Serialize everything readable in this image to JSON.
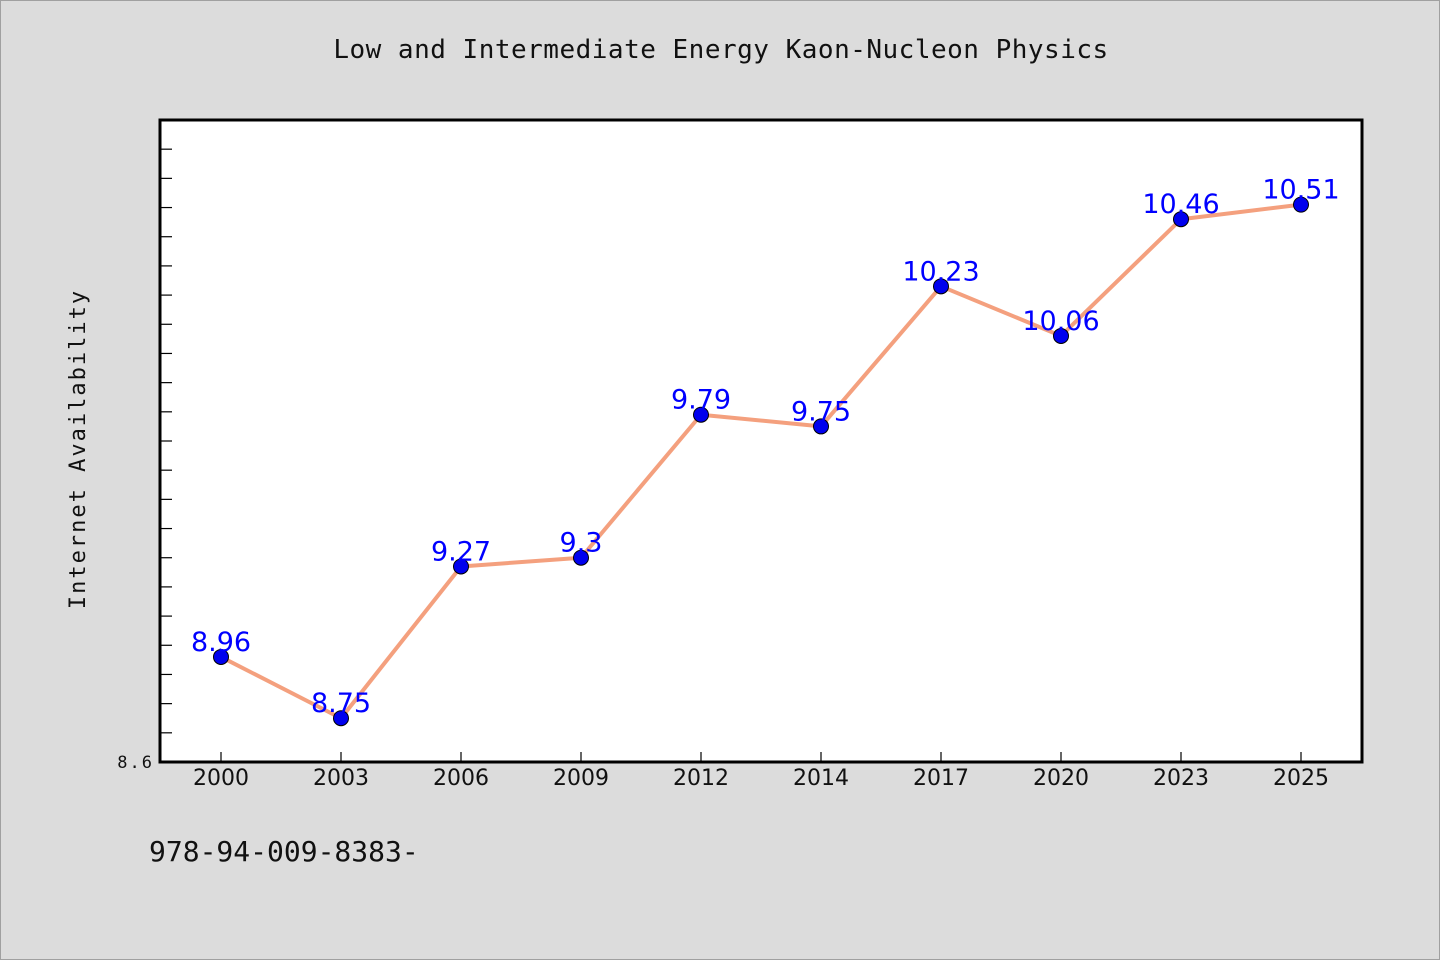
{
  "chart_data": {
    "type": "line",
    "title": "Low and Intermediate Energy Kaon-Nucleon Physics",
    "xlabel": "",
    "ylabel": "Internet Availability",
    "categories": [
      "2000",
      "2003",
      "2006",
      "2009",
      "2012",
      "2014",
      "2017",
      "2020",
      "2023",
      "2025"
    ],
    "series": [
      {
        "values": [
          8.96,
          8.75,
          9.27,
          9.3,
          9.79,
          9.75,
          10.23,
          10.06,
          10.46,
          10.51
        ],
        "labels": [
          "8.96",
          "8.75",
          "9.27",
          "9.3",
          "9.79",
          "9.75",
          "10.23",
          "10.06",
          "10.46",
          "10.51"
        ]
      }
    ],
    "ylim": [
      8.6,
      10.8
    ],
    "yticklabels_shown": [
      "8.6"
    ],
    "grid": false,
    "colors": {
      "line": "#f4a07e",
      "marker": "#0000ee",
      "label": "#0000ff",
      "plot_bg": "#ffffff",
      "page_bg": "#dcdcdc"
    }
  },
  "footer": {
    "code": "978-94-009-8383-"
  }
}
